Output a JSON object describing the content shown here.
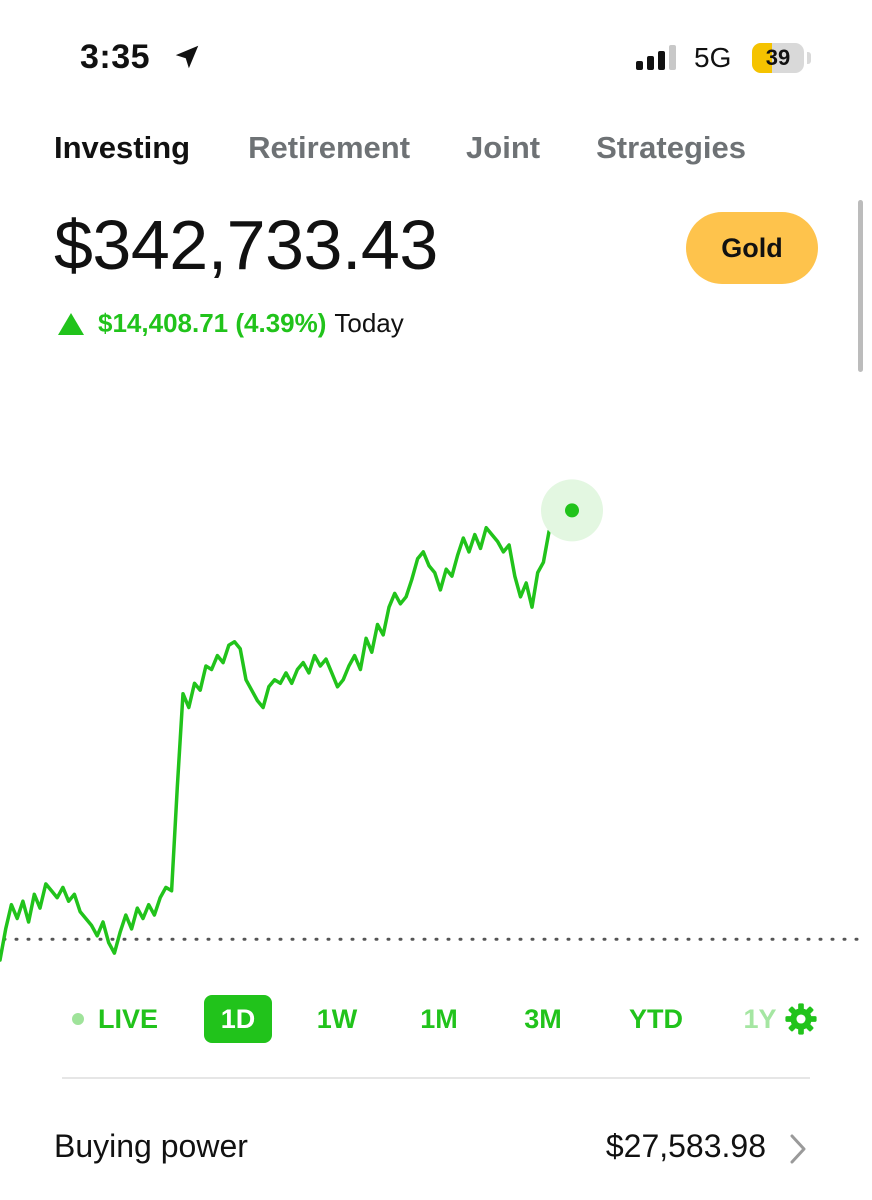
{
  "status_bar": {
    "time": "3:35",
    "network": "5G",
    "battery_level": "39",
    "battery_color": "#f5c300",
    "signal_bars_active": 3,
    "signal_bars_total": 4,
    "icons": [
      "location-arrow-icon",
      "signal-icon",
      "battery-icon"
    ]
  },
  "tabs": [
    {
      "label": "Investing",
      "active": true
    },
    {
      "label": "Retirement",
      "active": false
    },
    {
      "label": "Joint",
      "active": false
    },
    {
      "label": "Strategies",
      "active": false
    }
  ],
  "portfolio": {
    "balance": "$342,733.43",
    "gold_button": "Gold",
    "change_value": "$14,408.71 (4.39%)",
    "change_period": "Today",
    "change_direction_icon": "up-triangle-icon"
  },
  "colors": {
    "accent_green": "#21c31b",
    "gold": "#fec34c"
  },
  "chart_data": {
    "type": "line",
    "series_shape": [
      0.0,
      0.09,
      0.16,
      0.12,
      0.17,
      0.11,
      0.19,
      0.15,
      0.22,
      0.2,
      0.18,
      0.21,
      0.17,
      0.19,
      0.14,
      0.12,
      0.1,
      0.07,
      0.11,
      0.05,
      0.02,
      0.08,
      0.13,
      0.09,
      0.15,
      0.12,
      0.16,
      0.13,
      0.18,
      0.21,
      0.2,
      0.5,
      0.77,
      0.73,
      0.8,
      0.78,
      0.85,
      0.84,
      0.88,
      0.86,
      0.91,
      0.92,
      0.9,
      0.81,
      0.78,
      0.75,
      0.73,
      0.79,
      0.81,
      0.8,
      0.83,
      0.8,
      0.84,
      0.86,
      0.83,
      0.88,
      0.85,
      0.87,
      0.83,
      0.79,
      0.81,
      0.85,
      0.88,
      0.84,
      0.93,
      0.89,
      0.97,
      0.94,
      1.02,
      1.06,
      1.03,
      1.05,
      1.1,
      1.16,
      1.18,
      1.14,
      1.12,
      1.07,
      1.13,
      1.11,
      1.17,
      1.22,
      1.18,
      1.23,
      1.19,
      1.25,
      1.23,
      1.21,
      1.18,
      1.2,
      1.11,
      1.05,
      1.09,
      1.02,
      1.12,
      1.15,
      1.24,
      1.26,
      1.25,
      1.27,
      1.3
    ],
    "baseline": 0.06,
    "ylim": [
      0,
      1.33
    ],
    "baseline_style": "dotted",
    "end_marker": true
  },
  "ranges": [
    {
      "label": "LIVE",
      "active": false,
      "has_dot": true
    },
    {
      "label": "1D",
      "active": true
    },
    {
      "label": "1W",
      "active": false
    },
    {
      "label": "1M",
      "active": false
    },
    {
      "label": "3M",
      "active": false
    },
    {
      "label": "YTD",
      "active": false
    },
    {
      "label": "1Y",
      "active": false,
      "faded": true
    }
  ],
  "buying_power": {
    "label": "Buying power",
    "value": "$27,583.98"
  }
}
